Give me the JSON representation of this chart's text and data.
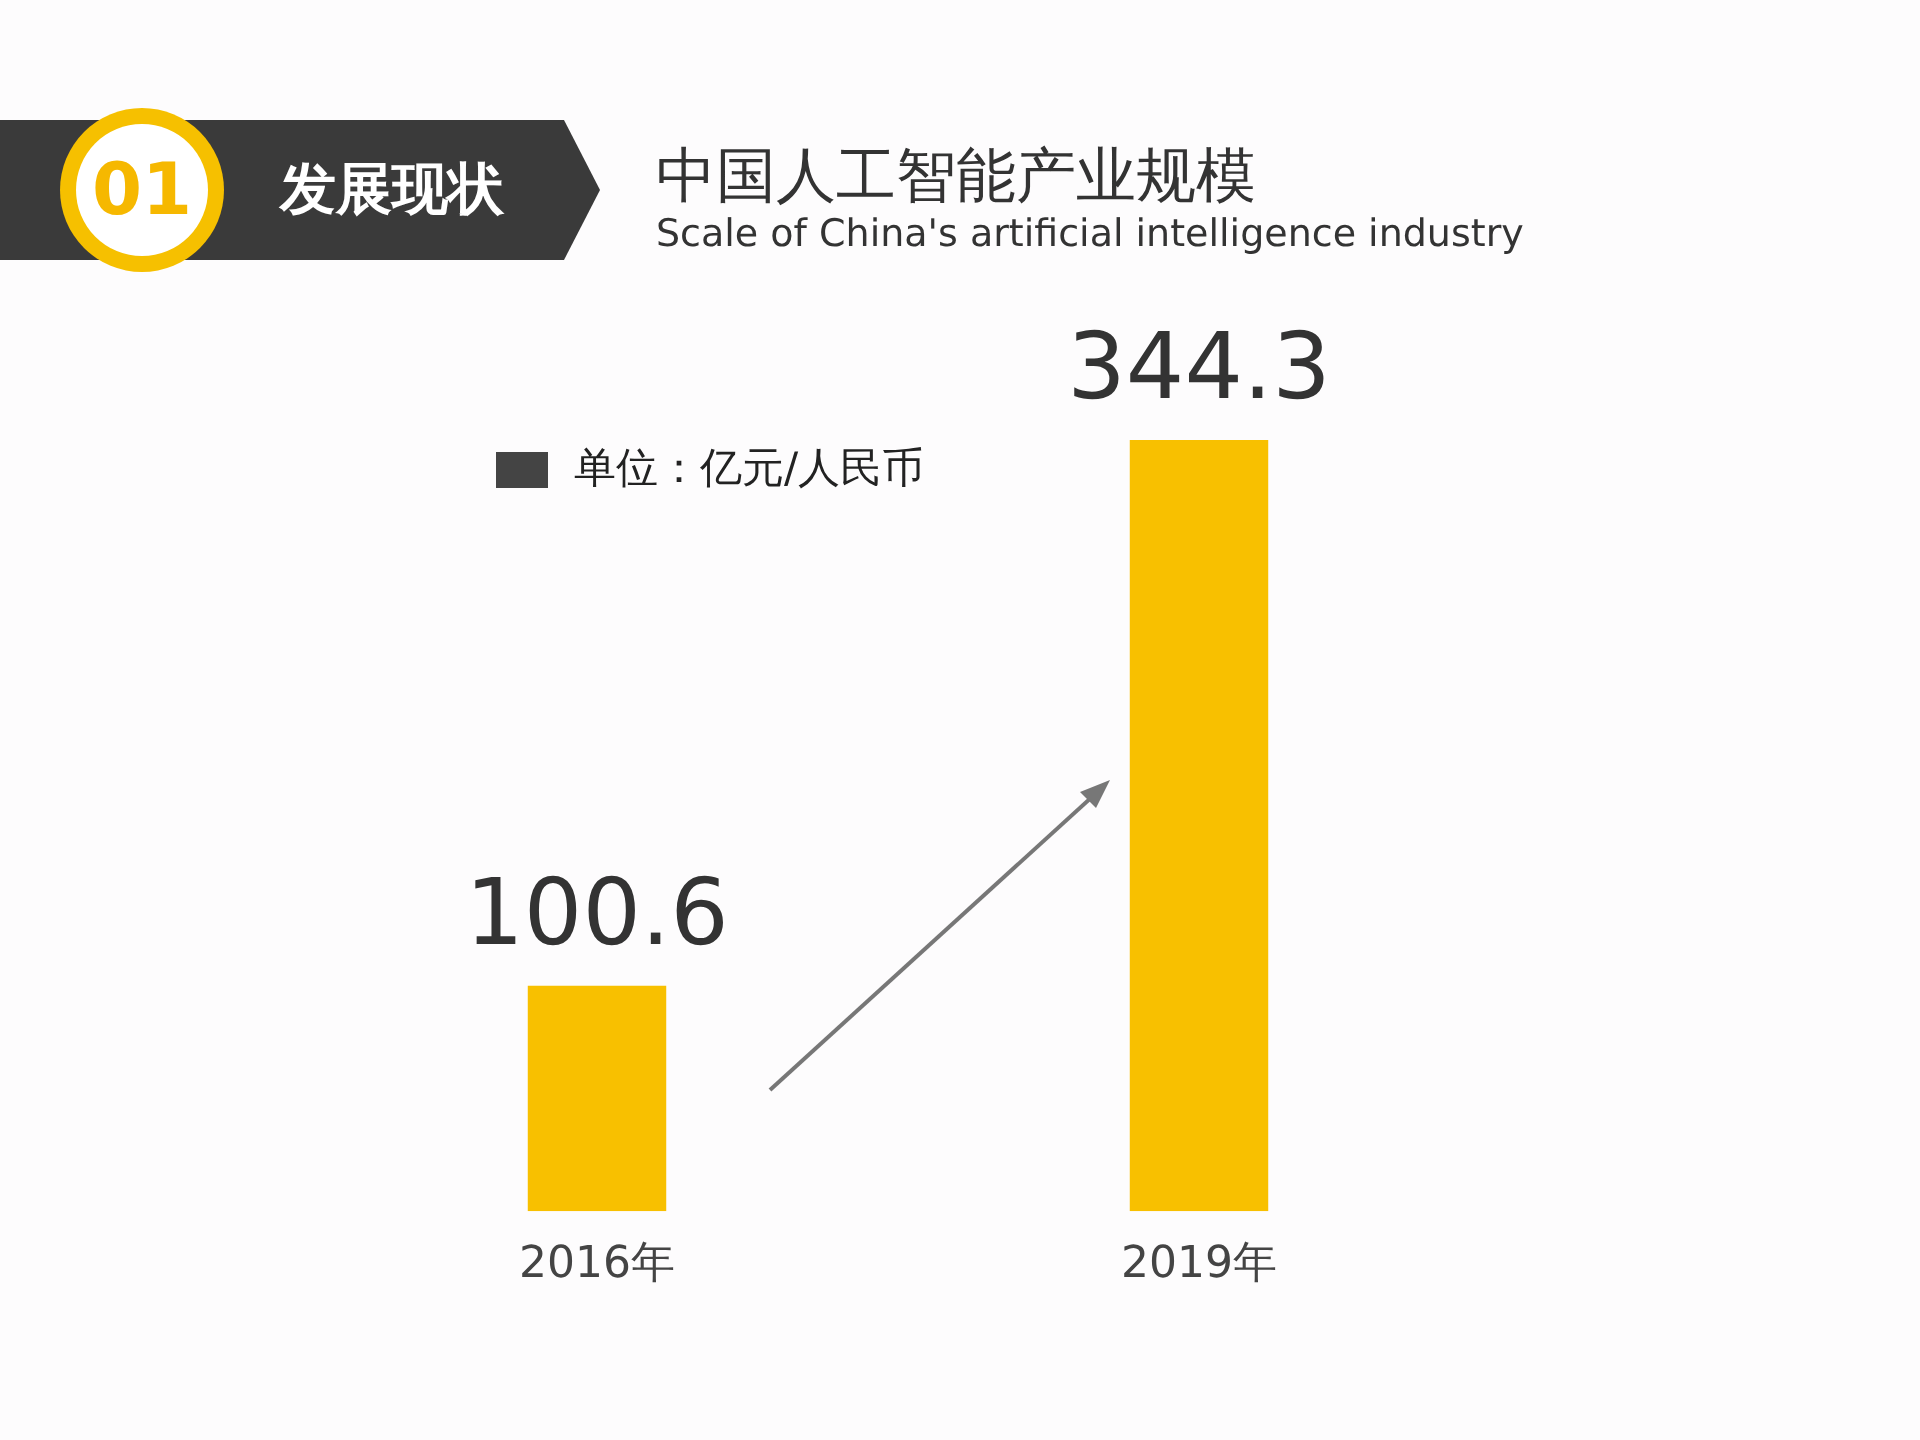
{
  "chart_data": {
    "type": "bar",
    "title": "中国人工智能产业规模",
    "subtitle": "Scale of China's artificial intelligence industry",
    "categories": [
      "2016年",
      "2019年"
    ],
    "values": [
      100.6,
      344.3
    ],
    "color": "#f8c000",
    "data_labels": true,
    "annotations": [
      "01",
      "发展现状",
      "单位：亿元/人民币"
    ]
  }
}
